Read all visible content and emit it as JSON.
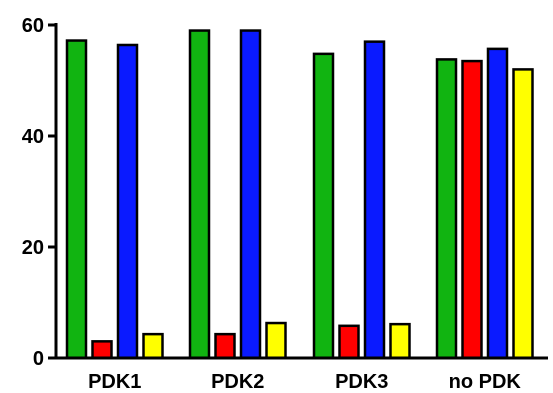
{
  "chart_data": {
    "type": "bar",
    "title": "",
    "xlabel": "",
    "ylabel": "",
    "ylim": [
      0,
      60
    ],
    "yticks": [
      0,
      20,
      40,
      60
    ],
    "grid": false,
    "legend": "none",
    "categories": [
      "PDK1",
      "PDK2",
      "PDK3",
      "no PDK"
    ],
    "series": [
      {
        "color": "#11b411",
        "values": [
          57.2,
          59.0,
          54.8,
          53.8
        ]
      },
      {
        "color": "#ff0000",
        "values": [
          3.0,
          4.3,
          5.8,
          53.5
        ]
      },
      {
        "color": "#0a1aff",
        "values": [
          56.4,
          59.0,
          57.0,
          55.7
        ]
      },
      {
        "color": "#ffff00",
        "values": [
          4.3,
          6.3,
          6.1,
          52.0
        ]
      }
    ]
  }
}
